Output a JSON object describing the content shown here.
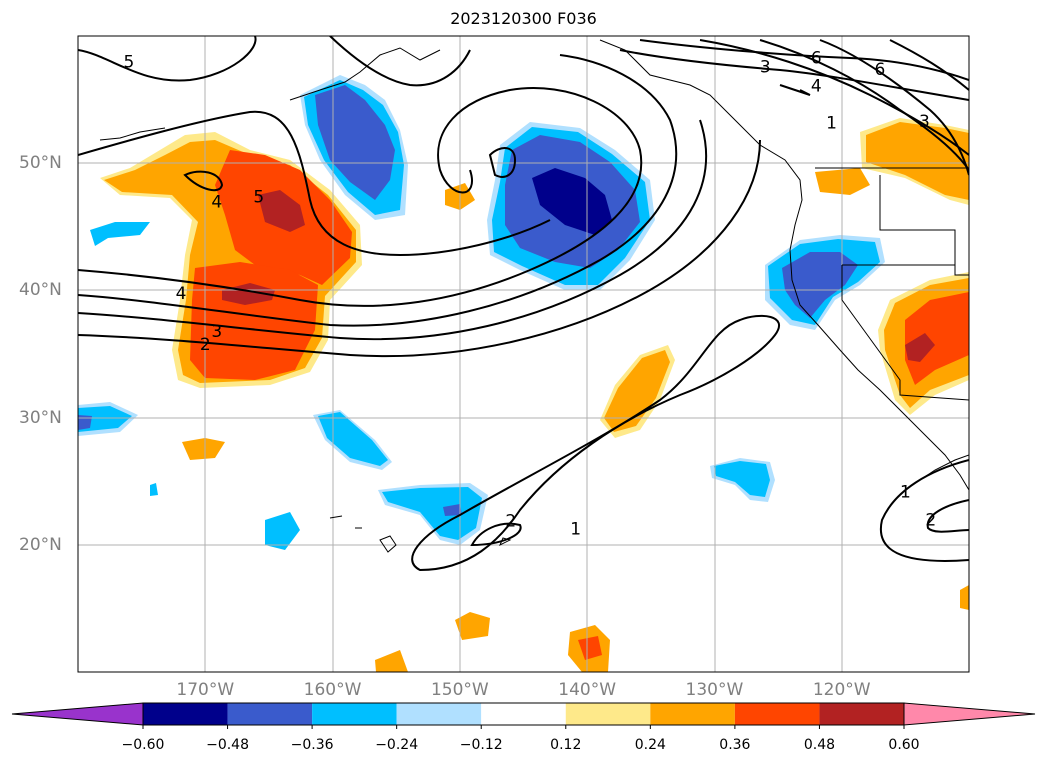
{
  "title": "2023120300 F036",
  "map": {
    "projection": "equirectangular",
    "lon_range": [
      -180,
      -110
    ],
    "lat_range": [
      10,
      60
    ],
    "grid": true,
    "lon_ticks": [
      {
        "lon": -170,
        "label": "170°W"
      },
      {
        "lon": -160,
        "label": "160°W"
      },
      {
        "lon": -150,
        "label": "150°W"
      },
      {
        "lon": -140,
        "label": "140°W"
      },
      {
        "lon": -130,
        "label": "130°W"
      },
      {
        "lon": -120,
        "label": "120°W"
      }
    ],
    "lat_ticks": [
      {
        "lat": 50,
        "label": "50°N"
      },
      {
        "lat": 40,
        "label": "40°N"
      },
      {
        "lat": 30,
        "label": "30°N"
      },
      {
        "lat": 20,
        "label": "20°N"
      }
    ],
    "contour_labels": [
      {
        "text": "5",
        "lon": -176,
        "lat": 58
      },
      {
        "text": "3",
        "lon": -126,
        "lat": 57.6
      },
      {
        "text": "6",
        "lon": -122,
        "lat": 58.3
      },
      {
        "text": "6",
        "lon": -117,
        "lat": 57.4
      },
      {
        "text": "4",
        "lon": -122,
        "lat": 56.1
      },
      {
        "text": "1",
        "lon": -120.8,
        "lat": 53.2
      },
      {
        "text": "3",
        "lon": -113.5,
        "lat": 53.3
      },
      {
        "text": "5",
        "lon": -165.8,
        "lat": 47.4
      },
      {
        "text": "4",
        "lon": -169.1,
        "lat": 47
      },
      {
        "text": "4",
        "lon": -171.9,
        "lat": 39.8
      },
      {
        "text": "3",
        "lon": -169.1,
        "lat": 36.8
      },
      {
        "text": "2",
        "lon": -170,
        "lat": 35.8
      },
      {
        "text": "2",
        "lon": -146,
        "lat": 21.9
      },
      {
        "text": "1",
        "lon": -140.9,
        "lat": 21.3
      },
      {
        "text": "1",
        "lon": -115,
        "lat": 24.2
      },
      {
        "text": "2",
        "lon": -113,
        "lat": 22
      }
    ]
  },
  "colorbar": {
    "boundaries": [
      -0.6,
      -0.48,
      -0.36,
      -0.24,
      -0.12,
      0.12,
      0.24,
      0.36,
      0.48,
      0.6
    ],
    "tick_labels": [
      "−0.60",
      "−0.48",
      "−0.36",
      "−0.24",
      "−0.12",
      "0.12",
      "0.24",
      "0.36",
      "0.48",
      "0.60"
    ],
    "under_color": "#9933cc",
    "over_color": "#ff88aa",
    "colors": [
      "#00008b",
      "#3a5bcc",
      "#00bfff",
      "#b0e0ff",
      "#ffffff",
      "#fee98a",
      "#ffa500",
      "#ff4500",
      "#b22222"
    ]
  }
}
